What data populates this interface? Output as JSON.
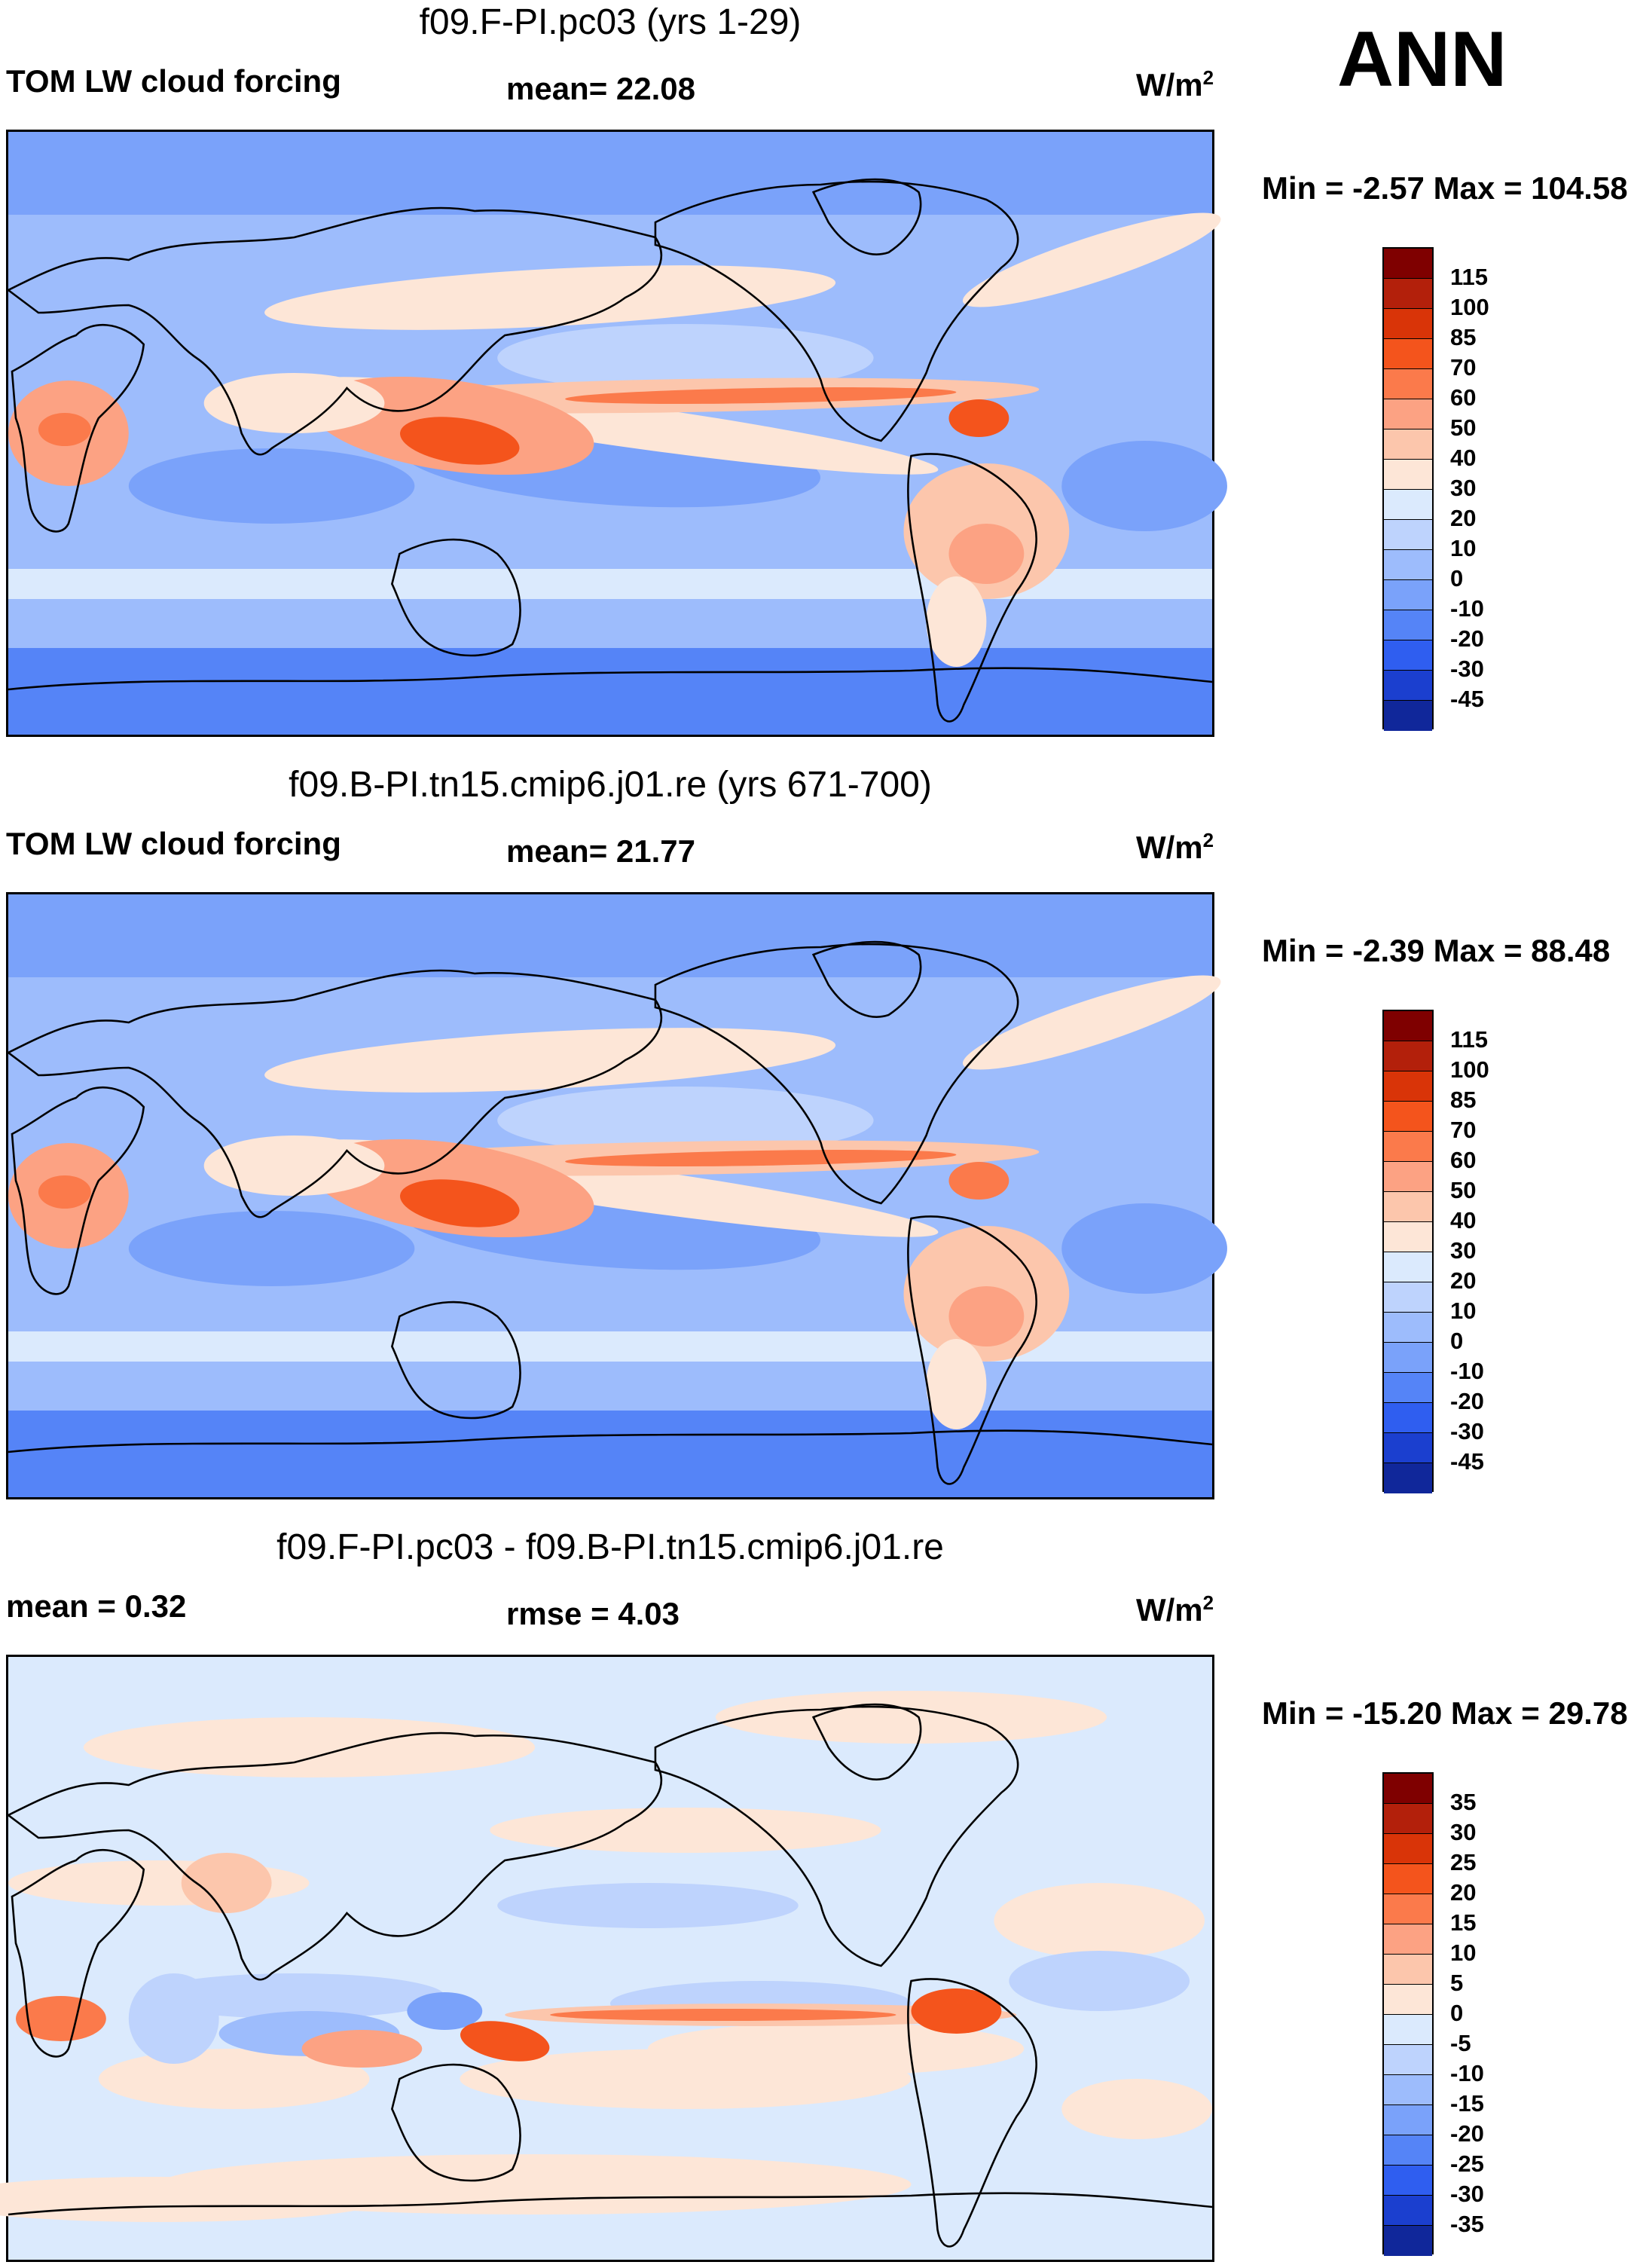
{
  "season": "ANN",
  "colors": {
    "abs_palette": [
      "#7f0000",
      "#b3200b",
      "#d93408",
      "#f4541c",
      "#fb7a4b",
      "#fca283",
      "#fcc6ac",
      "#fde6d7",
      "#dbeafd",
      "#bed3fd",
      "#9dbcfc",
      "#7aa2fa",
      "#5584f7",
      "#2f5ef0",
      "#1b3fcf",
      "#10279a",
      "#070f6e"
    ],
    "diff_palette": [
      "#7f0000",
      "#b3200b",
      "#d93408",
      "#f4541c",
      "#fb7a4b",
      "#fca283",
      "#fcc6ac",
      "#fde6d7",
      "#dbeafd",
      "#bed3fd",
      "#9dbcfc",
      "#7aa2fa",
      "#5584f7",
      "#2f5ef0",
      "#1b3fcf",
      "#10279a",
      "#070f6e",
      "#070f6e"
    ]
  },
  "chart_data": [
    {
      "type": "heatmap",
      "title": "f09.F-PI.pc03 (yrs 1-29)",
      "variable": "TOM LW cloud forcing",
      "stat_label": "mean=  22.08",
      "units_label": "W/m",
      "units_sup": "2",
      "minmax_label": "Min =  -2.57 Max = 104.58",
      "min": -2.57,
      "max": 104.58,
      "mean": 22.08,
      "levels": [
        "115",
        "100",
        "85",
        "70",
        "60",
        "50",
        "40",
        "30",
        "20",
        "10",
        "0",
        "-10",
        "-20",
        "-30",
        "-45"
      ]
    },
    {
      "type": "heatmap",
      "title": "f09.B-PI.tn15.cmip6.j01.re (yrs 671-700)",
      "variable": "TOM LW cloud forcing",
      "stat_label": "mean=  21.77",
      "units_label": "W/m",
      "units_sup": "2",
      "minmax_label": "Min =  -2.39 Max =  88.48",
      "min": -2.39,
      "max": 88.48,
      "mean": 21.77,
      "levels": [
        "115",
        "100",
        "85",
        "70",
        "60",
        "50",
        "40",
        "30",
        "20",
        "10",
        "0",
        "-10",
        "-20",
        "-30",
        "-45"
      ]
    },
    {
      "type": "heatmap",
      "title": "f09.F-PI.pc03 - f09.B-PI.tn15.cmip6.j01.re",
      "variable": "mean =   0.32",
      "stat_label": "rmse =    4.03",
      "units_label": "W/m",
      "units_sup": "2",
      "minmax_label": "Min = -15.20 Max =  29.78",
      "min": -15.2,
      "max": 29.78,
      "mean": 0.32,
      "rmse": 4.03,
      "levels": [
        "35",
        "30",
        "25",
        "20",
        "15",
        "10",
        "5",
        "0",
        "-5",
        "-10",
        "-15",
        "-20",
        "-25",
        "-30",
        "-35"
      ]
    }
  ]
}
